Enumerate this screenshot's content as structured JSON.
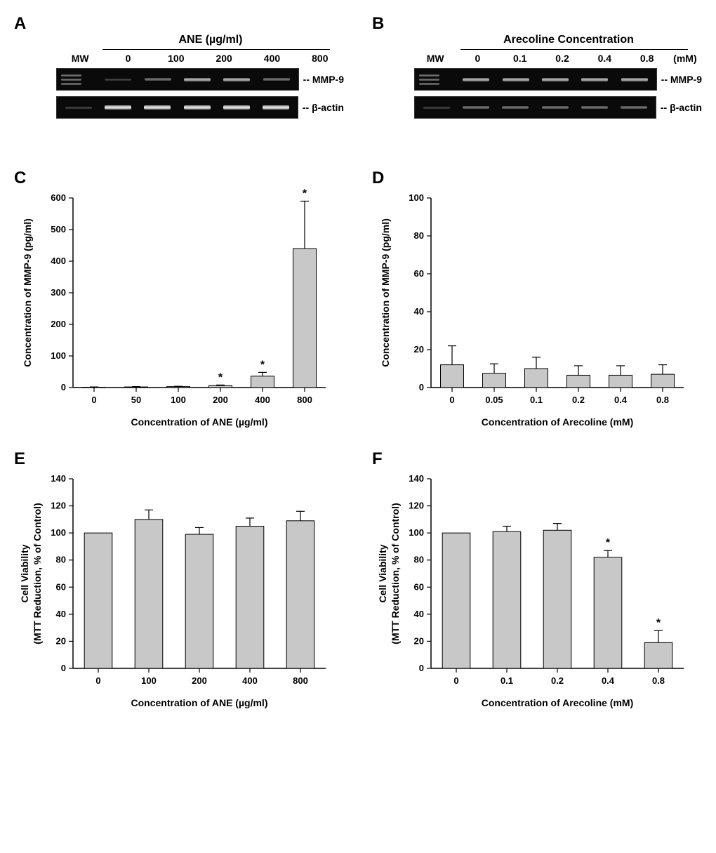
{
  "panels": {
    "A": {
      "label": "A",
      "title": "ANE (µg/ml)",
      "mw_label": "MW",
      "lane_labels": [
        "0",
        "100",
        "200",
        "400",
        "800"
      ],
      "row1_label": "-- MMP-9",
      "row2_label": "-- β-actin",
      "row1_intensity": [
        "faint",
        "weak",
        "med",
        "med",
        "weak"
      ],
      "row2_intensity": [
        "strong",
        "strong",
        "strong",
        "strong",
        "strong"
      ]
    },
    "B": {
      "label": "B",
      "title": "Arecoline Concentration",
      "mw_label": "MW",
      "lane_labels": [
        "0",
        "0.1",
        "0.2",
        "0.4",
        "0.8"
      ],
      "lane_unit": "(mM)",
      "row1_label": "-- MMP-9",
      "row2_label": "-- β-actin",
      "row1_intensity": [
        "med",
        "med",
        "med",
        "med",
        "med"
      ],
      "row2_intensity": [
        "weak",
        "weak",
        "weak",
        "weak",
        "weak"
      ]
    },
    "C": {
      "label": "C",
      "type": "bar",
      "xlabel": "Concentration of ANE (µg/ml)",
      "ylabel": "Concentration of MMP-9 (pg/ml)",
      "categories": [
        "0",
        "50",
        "100",
        "200",
        "400",
        "800"
      ],
      "values": [
        1,
        2,
        3,
        6,
        36,
        440
      ],
      "errors": [
        1,
        1,
        1,
        2,
        12,
        150
      ],
      "sig": [
        false,
        false,
        false,
        true,
        true,
        true
      ],
      "ylim": [
        0,
        600
      ],
      "ytick_step": 100,
      "bar_color": "#c8c8c8",
      "bar_stroke": "#000000",
      "background": "#ffffff",
      "bar_width": 0.55
    },
    "D": {
      "label": "D",
      "type": "bar",
      "xlabel": "Concentration of Arecoline (mM)",
      "ylabel": "Concentration of MMP-9 (pg/ml)",
      "categories": [
        "0",
        "0.05",
        "0.1",
        "0.2",
        "0.4",
        "0.8"
      ],
      "values": [
        12,
        7.5,
        10,
        6.5,
        6.5,
        7
      ],
      "errors": [
        10,
        5,
        6,
        5,
        5,
        5
      ],
      "sig": [
        false,
        false,
        false,
        false,
        false,
        false
      ],
      "ylim": [
        0,
        100
      ],
      "ytick_step": 20,
      "bar_color": "#c8c8c8",
      "bar_stroke": "#000000",
      "background": "#ffffff",
      "bar_width": 0.55
    },
    "E": {
      "label": "E",
      "type": "bar",
      "xlabel": "Concentration of ANE (µg/ml)",
      "ylabel_line1": "Cell Viability",
      "ylabel_line2": "(MTT Reduction, % of Control)",
      "categories": [
        "0",
        "100",
        "200",
        "400",
        "800"
      ],
      "values": [
        100,
        110,
        99,
        105,
        109
      ],
      "errors": [
        0,
        7,
        5,
        6,
        7
      ],
      "sig": [
        false,
        false,
        false,
        false,
        false
      ],
      "ylim": [
        0,
        140
      ],
      "ytick_step": 20,
      "bar_color": "#c8c8c8",
      "bar_stroke": "#000000",
      "background": "#ffffff",
      "bar_width": 0.55
    },
    "F": {
      "label": "F",
      "type": "bar",
      "xlabel": "Concentration of Arecoline (mM)",
      "ylabel_line1": "Cell Viability",
      "ylabel_line2": "(MTT Reduction, % of Control)",
      "categories": [
        "0",
        "0.1",
        "0.2",
        "0.4",
        "0.8"
      ],
      "values": [
        100,
        101,
        102,
        82,
        19
      ],
      "errors": [
        0,
        4,
        5,
        5,
        9
      ],
      "sig": [
        false,
        false,
        false,
        true,
        true
      ],
      "ylim": [
        0,
        140
      ],
      "ytick_step": 20,
      "bar_color": "#c8c8c8",
      "bar_stroke": "#000000",
      "background": "#ffffff",
      "bar_width": 0.55
    }
  }
}
